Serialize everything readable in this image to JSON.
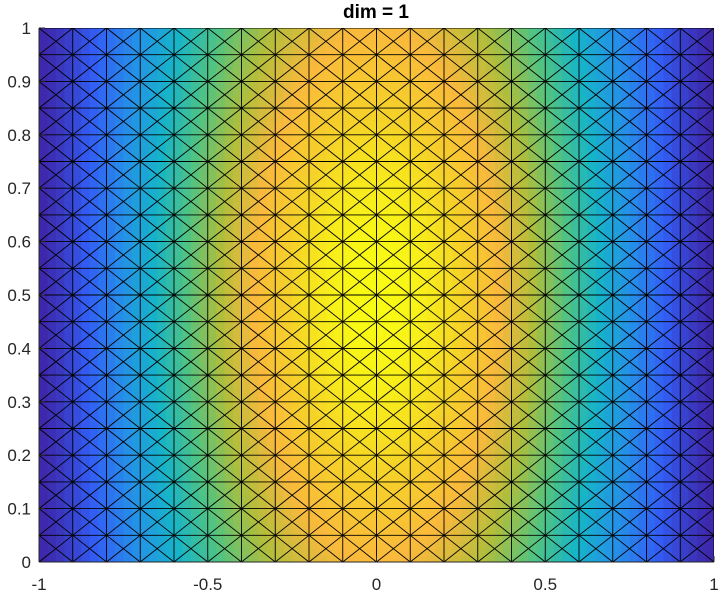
{
  "chart_data": {
    "type": "heatmap",
    "title": "dim = 1",
    "xlabel": "",
    "ylabel": "",
    "xlim": [
      -1,
      1
    ],
    "ylim": [
      0,
      1
    ],
    "x_ticks": [
      -1,
      -0.5,
      0,
      0.5,
      1
    ],
    "y_ticks": [
      0,
      0.1,
      0.2,
      0.3,
      0.4,
      0.5,
      0.6,
      0.7,
      0.8,
      0.9,
      1
    ],
    "x_tick_labels": [
      "-1",
      "-0.5",
      "0",
      "0.5",
      "1"
    ],
    "y_tick_labels": [
      "0",
      "0.1",
      "0.2",
      "0.3",
      "0.4",
      "0.5",
      "0.6",
      "0.7",
      "0.8",
      "0.9",
      "1"
    ],
    "mesh": {
      "element": "triangle",
      "nx": 20,
      "ny": 20,
      "pattern": "union-jack"
    },
    "field": "smooth scalar field, maximum (yellow) near x = 0, y = 0.5; minimum (dark blue) at the corners",
    "colormap": "parula",
    "grid": false
  }
}
